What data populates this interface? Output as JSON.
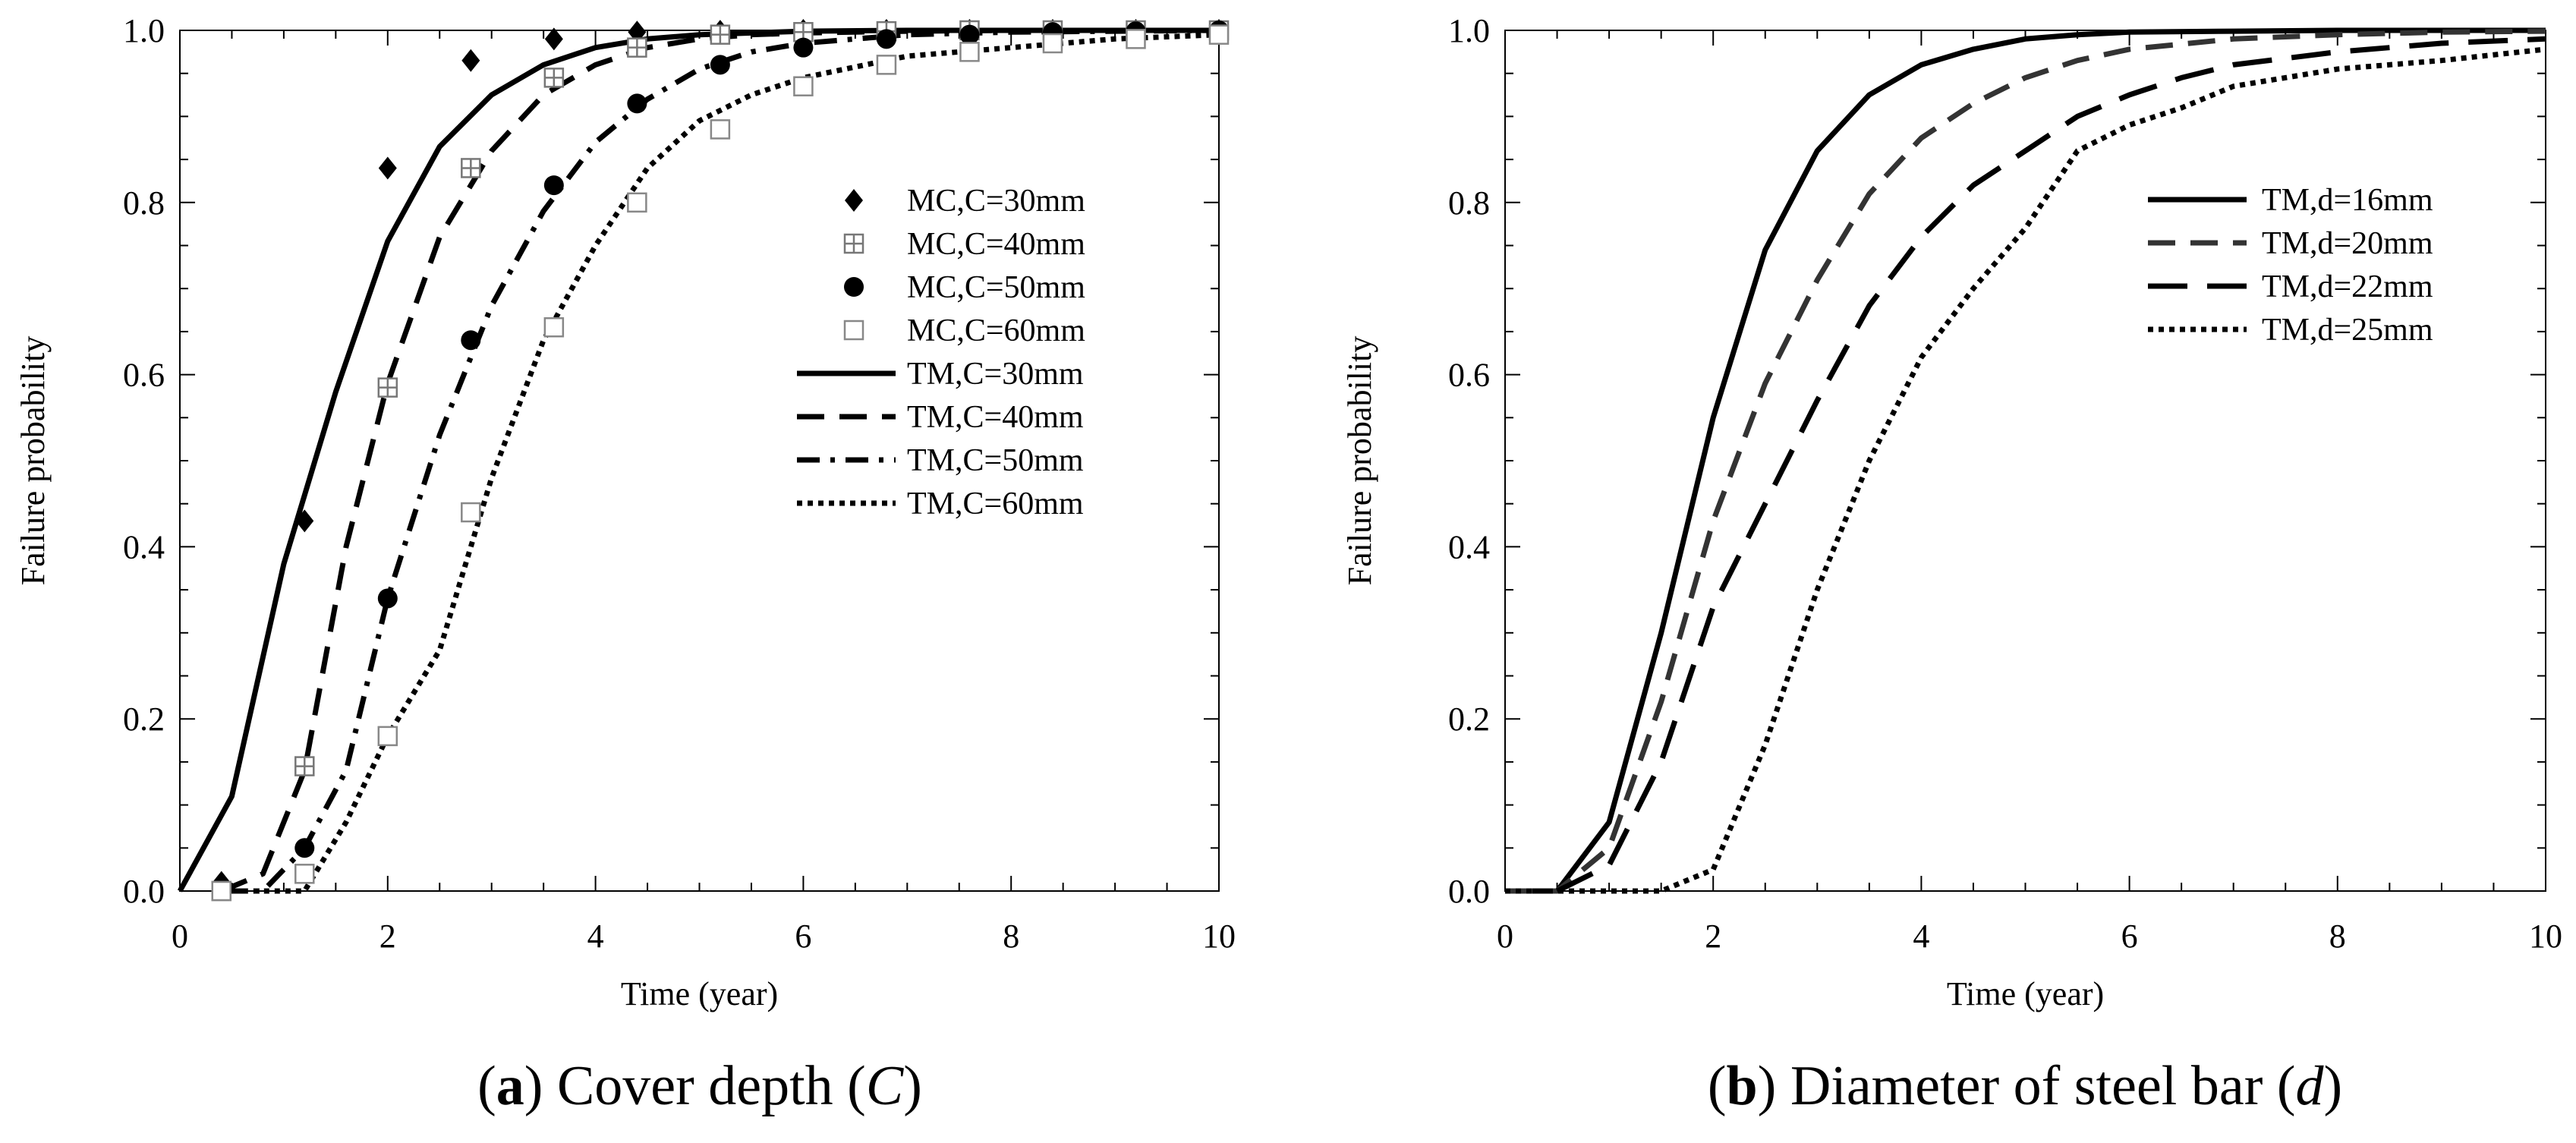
{
  "chart_data": [
    {
      "type": "line",
      "id": "a",
      "caption": {
        "letter": "a",
        "text": " Cover depth (",
        "var": "C",
        "close": ")"
      },
      "xlabel": "Time (year)",
      "ylabel": "Failure probability",
      "xlim": [
        0,
        10
      ],
      "ylim": [
        0,
        1
      ],
      "xticks": [
        0,
        2,
        4,
        6,
        8,
        10
      ],
      "yticks": [
        0.0,
        0.2,
        0.4,
        0.6,
        0.8,
        1.0
      ],
      "xtick_labels": [
        "0",
        "2",
        "4",
        "6",
        "8",
        "10"
      ],
      "ytick_labels": [
        "0.0",
        "0.2",
        "0.4",
        "0.6",
        "0.8",
        "1.0"
      ],
      "legend_position": "right-middle",
      "scatter_series": [
        {
          "name": "MC,C=30mm",
          "marker": "diamond",
          "color": "#000000",
          "x": [
            0.4,
            1.2,
            2.0,
            2.8,
            3.6,
            4.4,
            5.2,
            6.0,
            6.8,
            7.6,
            8.4,
            9.2,
            10.0
          ],
          "y": [
            0.01,
            0.43,
            0.84,
            0.965,
            0.99,
            0.998,
            0.999,
            1.0,
            1.0,
            1.0,
            1.0,
            1.0,
            1.0
          ]
        },
        {
          "name": "MC,C=40mm",
          "marker": "square-cross",
          "color": "#777777",
          "x": [
            0.4,
            1.2,
            2.0,
            2.8,
            3.6,
            4.4,
            5.2,
            6.0,
            6.8,
            7.6,
            8.4,
            9.2,
            10.0
          ],
          "y": [
            0.0,
            0.145,
            0.585,
            0.84,
            0.945,
            0.98,
            0.995,
            0.998,
            0.999,
            1.0,
            1.0,
            1.0,
            1.0
          ]
        },
        {
          "name": "MC,C=50mm",
          "marker": "circle",
          "color": "#000000",
          "x": [
            0.4,
            1.2,
            2.0,
            2.8,
            3.6,
            4.4,
            5.2,
            6.0,
            6.8,
            7.6,
            8.4,
            9.2,
            10.0
          ],
          "y": [
            0.0,
            0.05,
            0.34,
            0.64,
            0.82,
            0.915,
            0.96,
            0.98,
            0.99,
            0.995,
            0.998,
            0.999,
            1.0
          ]
        },
        {
          "name": "MC,C=60mm",
          "marker": "square-open",
          "color": "#888888",
          "x": [
            0.4,
            1.2,
            2.0,
            2.8,
            3.6,
            4.4,
            5.2,
            6.0,
            6.8,
            7.6,
            8.4,
            9.2,
            10.0
          ],
          "y": [
            0.0,
            0.02,
            0.18,
            0.44,
            0.655,
            0.8,
            0.885,
            0.935,
            0.96,
            0.975,
            0.985,
            0.99,
            0.995
          ]
        }
      ],
      "line_series": [
        {
          "name": "TM,C=30mm",
          "dash": "solid",
          "color": "#000000",
          "x": [
            0,
            0.5,
            1.0,
            1.5,
            2.0,
            2.5,
            3.0,
            3.5,
            4.0,
            4.5,
            5.0,
            5.5,
            6.0,
            7.0,
            8.0,
            9.0,
            10.0
          ],
          "y": [
            0.0,
            0.11,
            0.38,
            0.58,
            0.755,
            0.865,
            0.925,
            0.96,
            0.98,
            0.99,
            0.995,
            0.997,
            0.999,
            1.0,
            1.0,
            1.0,
            1.0
          ]
        },
        {
          "name": "TM,C=40mm",
          "dash": "dash",
          "color": "#000000",
          "x": [
            0.4,
            0.8,
            1.2,
            1.6,
            2.0,
            2.5,
            3.0,
            3.5,
            4.0,
            4.5,
            5.0,
            5.5,
            6.0,
            7.0,
            8.0,
            9.0,
            10.0
          ],
          "y": [
            0.0,
            0.02,
            0.14,
            0.4,
            0.59,
            0.76,
            0.86,
            0.925,
            0.96,
            0.98,
            0.99,
            0.995,
            0.997,
            0.999,
            1.0,
            1.0,
            1.0
          ]
        },
        {
          "name": "TM,C=50mm",
          "dash": "dashdot",
          "color": "#000000",
          "x": [
            0.4,
            0.8,
            1.2,
            1.6,
            2.0,
            2.5,
            3.0,
            3.5,
            4.0,
            4.5,
            5.0,
            5.5,
            6.0,
            7.0,
            8.0,
            9.0,
            10.0
          ],
          "y": [
            0.0,
            0.0,
            0.05,
            0.14,
            0.34,
            0.53,
            0.68,
            0.79,
            0.87,
            0.92,
            0.955,
            0.975,
            0.985,
            0.995,
            0.998,
            0.999,
            1.0
          ]
        },
        {
          "name": "TM,C=60mm",
          "dash": "dot",
          "color": "#000000",
          "x": [
            0.4,
            0.8,
            1.2,
            1.6,
            2.0,
            2.5,
            3.0,
            3.5,
            4.0,
            4.5,
            5.0,
            5.5,
            6.0,
            7.0,
            8.0,
            9.0,
            10.0
          ],
          "y": [
            0.0,
            0.0,
            0.0,
            0.08,
            0.18,
            0.28,
            0.48,
            0.64,
            0.75,
            0.84,
            0.895,
            0.925,
            0.945,
            0.97,
            0.98,
            0.99,
            0.995
          ]
        }
      ]
    },
    {
      "type": "line",
      "id": "b",
      "caption": {
        "letter": "b",
        "text": " Diameter of steel bar (",
        "var": "d",
        "close": ")"
      },
      "xlabel": "Time (year)",
      "ylabel": "Failure probability",
      "xlim": [
        0,
        10
      ],
      "ylim": [
        0,
        1
      ],
      "xticks": [
        0,
        2,
        4,
        6,
        8,
        10
      ],
      "yticks": [
        0.0,
        0.2,
        0.4,
        0.6,
        0.8,
        1.0
      ],
      "xtick_labels": [
        "0",
        "2",
        "4",
        "6",
        "8",
        "10"
      ],
      "ytick_labels": [
        "0.0",
        "0.2",
        "0.4",
        "0.6",
        "0.8",
        "1.0"
      ],
      "legend_position": "right-upper",
      "scatter_series": [],
      "line_series": [
        {
          "name": "TM,d=16mm",
          "dash": "solid",
          "color": "#000000",
          "x": [
            0,
            0.5,
            1.0,
            1.5,
            2.0,
            2.5,
            3.0,
            3.5,
            4.0,
            4.5,
            5.0,
            5.5,
            6.0,
            7.0,
            8.0,
            9.0,
            10.0
          ],
          "y": [
            0.0,
            0.0,
            0.08,
            0.3,
            0.55,
            0.745,
            0.86,
            0.925,
            0.96,
            0.978,
            0.99,
            0.995,
            0.998,
            0.999,
            1.0,
            1.0,
            1.0
          ]
        },
        {
          "name": "TM,d=20mm",
          "dash": "dash",
          "color": "#333333",
          "x": [
            0,
            0.5,
            1.0,
            1.5,
            2.0,
            2.5,
            3.0,
            3.5,
            4.0,
            4.5,
            5.0,
            5.5,
            6.0,
            7.0,
            8.0,
            9.0,
            10.0
          ],
          "y": [
            0.0,
            0.0,
            0.05,
            0.22,
            0.43,
            0.59,
            0.71,
            0.81,
            0.875,
            0.915,
            0.945,
            0.965,
            0.978,
            0.99,
            0.995,
            0.998,
            0.999
          ]
        },
        {
          "name": "TM,d=22mm",
          "dash": "longdash",
          "color": "#000000",
          "x": [
            0.5,
            1.0,
            1.5,
            2.0,
            2.5,
            3.0,
            3.5,
            4.0,
            4.5,
            5.0,
            5.5,
            6.0,
            6.5,
            7.0,
            8.0,
            9.0,
            10.0
          ],
          "y": [
            0.0,
            0.03,
            0.15,
            0.33,
            0.45,
            0.57,
            0.68,
            0.76,
            0.82,
            0.86,
            0.9,
            0.925,
            0.945,
            0.96,
            0.975,
            0.985,
            0.99
          ]
        },
        {
          "name": "TM,d=25mm",
          "dash": "dot",
          "color": "#000000",
          "x": [
            0,
            0.5,
            1.0,
            1.5,
            2.0,
            2.5,
            3.0,
            3.5,
            4.0,
            4.5,
            5.0,
            5.5,
            6.0,
            6.5,
            7.0,
            8.0,
            9.0,
            10.0
          ],
          "y": [
            0.0,
            0.0,
            0.0,
            0.0,
            0.025,
            0.17,
            0.35,
            0.5,
            0.62,
            0.7,
            0.77,
            0.86,
            0.89,
            0.91,
            0.935,
            0.955,
            0.965,
            0.978
          ]
        }
      ]
    }
  ]
}
